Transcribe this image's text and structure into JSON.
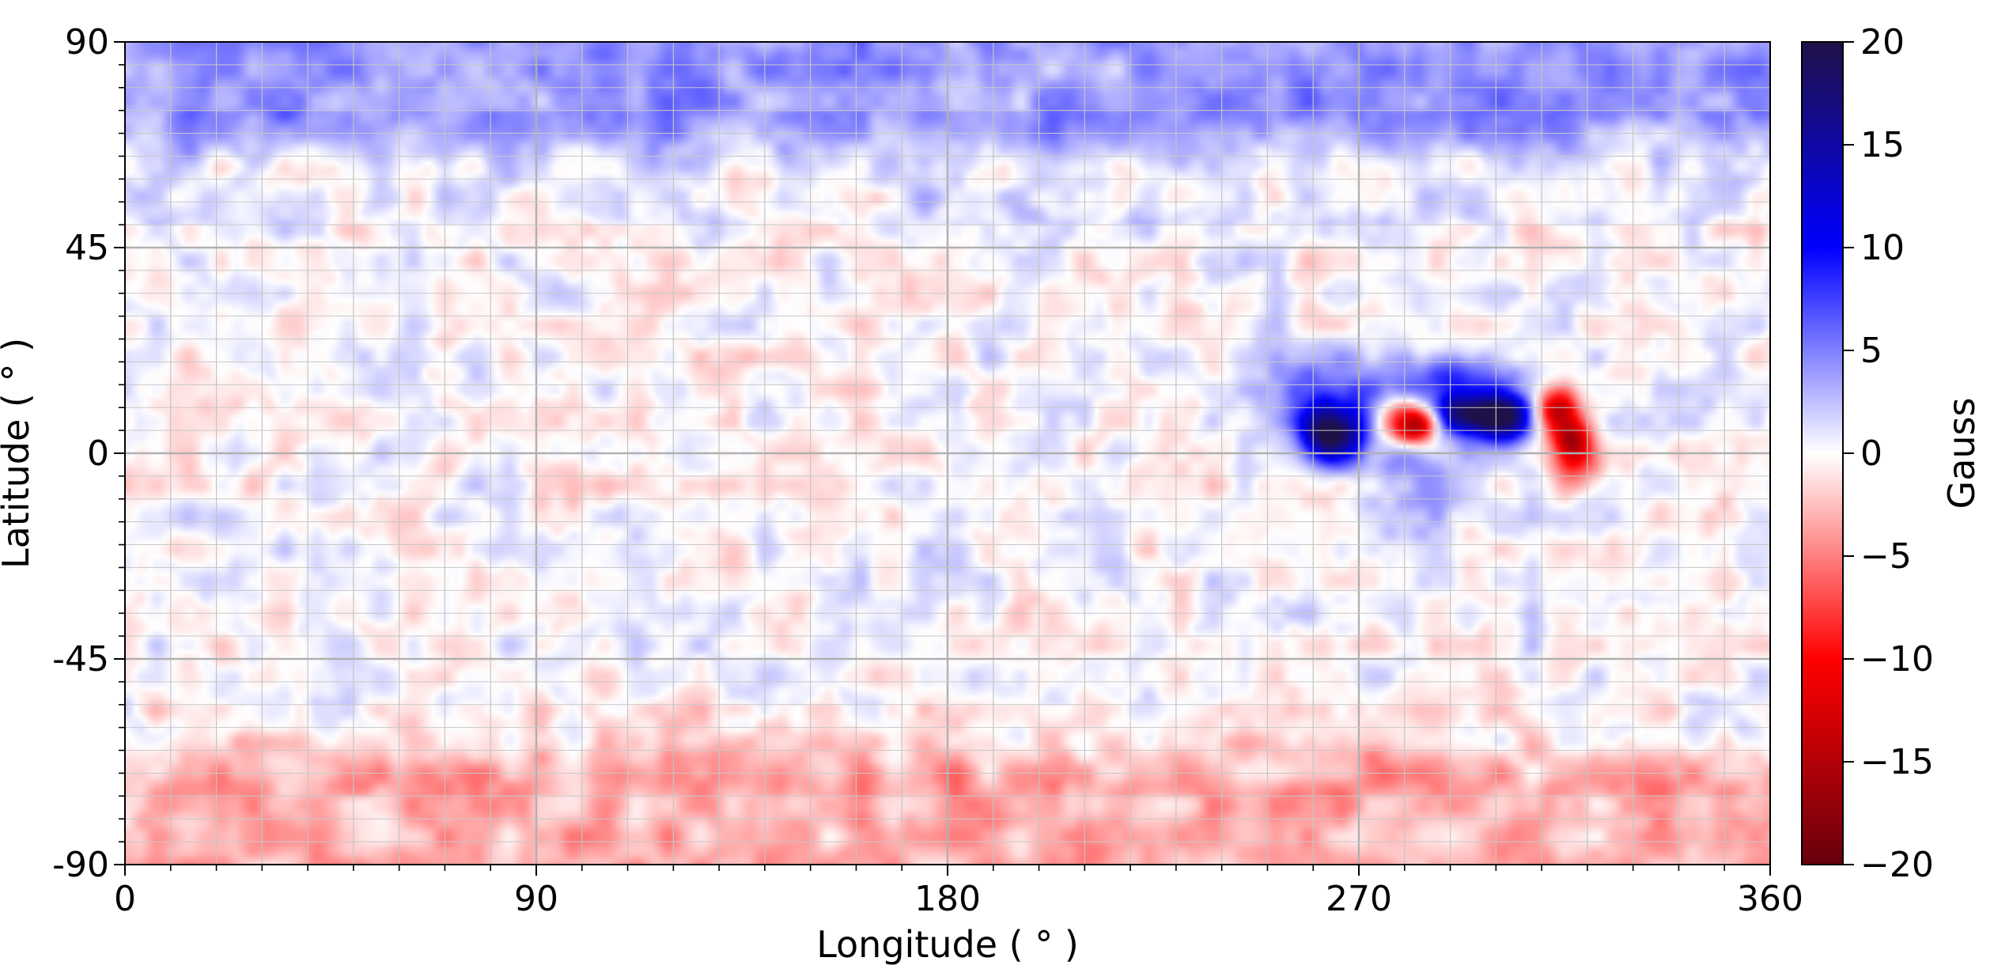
{
  "chart_data": {
    "type": "heatmap",
    "title": "",
    "xlabel": "Longitude ( ° )",
    "ylabel": "Latitude ( ° )",
    "xlim": [
      0,
      360
    ],
    "ylim": [
      -90,
      90
    ],
    "x_ticks": [
      0,
      90,
      180,
      270,
      360
    ],
    "x_tick_labels": [
      "0",
      "90",
      "180",
      "270",
      "360"
    ],
    "y_ticks": [
      90,
      45,
      0,
      -45,
      -90
    ],
    "y_tick_labels": [
      "90",
      "45",
      "0",
      "-45",
      "-90"
    ],
    "grid": true,
    "colorbar": {
      "label": "Gauss",
      "range": [
        -20,
        20
      ],
      "ticks": [
        20,
        15,
        10,
        5,
        0,
        -5,
        -10,
        -15,
        -20
      ],
      "tick_labels": [
        "20",
        "15",
        "10",
        "5",
        "0",
        "−5",
        "−10",
        "−15",
        "−20"
      ],
      "colormap": "seismic_r",
      "colors": [
        "#67000d",
        "#ff0000",
        "#ffffff",
        "#0000ff",
        "#1f1147"
      ]
    },
    "background_pattern": {
      "north_polar_cap": {
        "lat_range": [
          70,
          90
        ],
        "value": 4
      },
      "south_polar_cap": {
        "lat_range": [
          -90,
          -68
        ],
        "value": -3
      },
      "mid_latitude_noise_amplitude": 1.5
    },
    "features": [
      {
        "lon": 264,
        "lat": 4,
        "value": 18,
        "lon_width": 6,
        "lat_width": 6
      },
      {
        "lon": 262,
        "lat": 12,
        "value": 6,
        "lon_width": 14,
        "lat_width": 10
      },
      {
        "lon": 276,
        "lat": 8,
        "value": 5,
        "lon_width": 10,
        "lat_width": 12
      },
      {
        "lon": 278,
        "lat": 7,
        "value": -14,
        "lon_width": 5,
        "lat_width": 5
      },
      {
        "lon": 283,
        "lat": 6,
        "value": -16,
        "lon_width": 4,
        "lat_width": 4
      },
      {
        "lon": 293,
        "lat": 9,
        "value": 16,
        "lon_width": 6,
        "lat_width": 5
      },
      {
        "lon": 301,
        "lat": 8,
        "value": 16,
        "lon_width": 6,
        "lat_width": 5
      },
      {
        "lon": 291,
        "lat": 17,
        "value": 8,
        "lon_width": 10,
        "lat_width": 5
      },
      {
        "lon": 308,
        "lat": 10,
        "value": 5,
        "lon_width": 8,
        "lat_width": 8
      },
      {
        "lon": 313,
        "lat": 9,
        "value": -18,
        "lon_width": 5,
        "lat_width": 5
      },
      {
        "lon": 317,
        "lat": 3,
        "value": -12,
        "lon_width": 4,
        "lat_width": 5
      },
      {
        "lon": 318,
        "lat": -2,
        "value": -6,
        "lon_width": 6,
        "lat_width": 6
      },
      {
        "lon": 285,
        "lat": -8,
        "value": 3,
        "lon_width": 12,
        "lat_width": 10
      }
    ]
  }
}
